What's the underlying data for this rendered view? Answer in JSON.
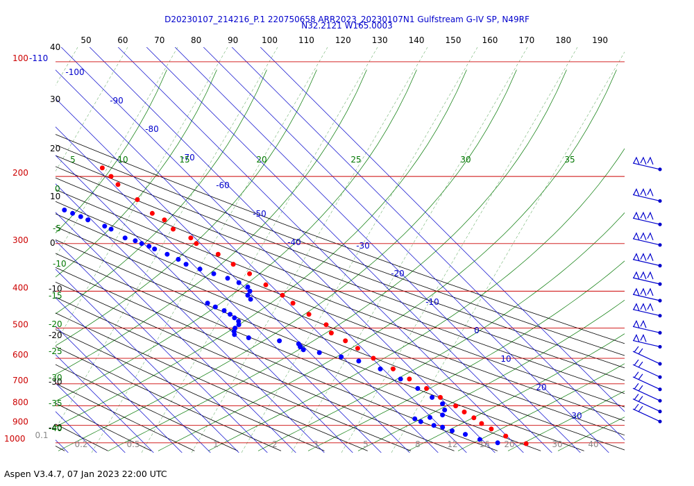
{
  "header": {
    "line1": "D20230107_214216_P.1 220750658 ARR2023_20230107N1 Gulfstream G-IV SP, N49RF",
    "line2": "N32.2121 W165.0003"
  },
  "footer": "Aspen V3.4.7, 07 Jan 2023  22:00 UTC",
  "colors": {
    "pressure": "#cc0000",
    "temperature": "#ff0000",
    "dewpoint": "#0000ff",
    "isotherm": "#0000cc",
    "mixing_ratio": "#007700",
    "dry_adiabat": "#000000",
    "moist_adiabat": "#007700",
    "wind": "#0000cc"
  },
  "chart_data": {
    "type": "skew-t",
    "pressure_levels": [
      "100",
      "200",
      "300",
      "400",
      "500",
      "600",
      "700",
      "800",
      "900",
      "1000"
    ],
    "top_label": "-110",
    "top_temperature_labels": [
      "50",
      "60",
      "70",
      "80",
      "90",
      "100",
      "110",
      "120",
      "130",
      "140",
      "150",
      "160",
      "170",
      "180",
      "190"
    ],
    "height_labels": [
      "40",
      "30",
      "20",
      "10",
      "0",
      "-10",
      "-20",
      "-30",
      "-40"
    ],
    "temperature_labels": [
      "-100",
      "-90",
      "-80",
      "-70",
      "-60",
      "-50",
      "-40",
      "-30",
      "-20",
      "-10",
      "0",
      "10",
      "20",
      "30"
    ],
    "left_labels": [
      "0",
      "-5",
      "-10",
      "-15",
      "-20",
      "-25",
      "-30",
      "-35",
      "-40"
    ],
    "mixing_ratio_top_labels": [
      "5",
      "10",
      "15",
      "20",
      "25",
      "30",
      "35"
    ],
    "mixing_ratio_bottom_labels": [
      "0.1",
      "0.2",
      "0.5",
      "1",
      "2",
      "3",
      "5",
      "8",
      "12",
      "16",
      "20",
      "30",
      "40"
    ],
    "temperature_profile": [
      [
        190,
        -38
      ],
      [
        200,
        -37.9
      ],
      [
        210,
        -38.3
      ],
      [
        230,
        -36.8
      ],
      [
        250,
        -36.4
      ],
      [
        260,
        -34.4
      ],
      [
        275,
        -34.6
      ],
      [
        290,
        -31.5
      ],
      [
        300,
        -31.5
      ],
      [
        320,
        -27.6
      ],
      [
        340,
        -25.8
      ],
      [
        360,
        -23.4
      ],
      [
        385,
        -21.6
      ],
      [
        410,
        -19.4
      ],
      [
        430,
        -18.5
      ],
      [
        460,
        -16.8
      ],
      [
        490,
        -14.4
      ],
      [
        515,
        -15.5
      ],
      [
        540,
        -13.3
      ],
      [
        565,
        -11.6
      ],
      [
        600,
        -9.6
      ],
      [
        640,
        -6.4
      ],
      [
        680,
        -4.2
      ],
      [
        720,
        -1.5
      ],
      [
        760,
        0.2
      ],
      [
        800,
        2.6
      ],
      [
        830,
        3.5
      ],
      [
        860,
        4.8
      ],
      [
        890,
        5.5
      ],
      [
        920,
        7.0
      ],
      [
        960,
        9.6
      ],
      [
        1005,
        14.1
      ]
    ],
    "dewpoint_profile": [
      [
        245,
        -66.1
      ],
      [
        250,
        -64.4
      ],
      [
        255,
        -62.7
      ],
      [
        260,
        -61.3
      ],
      [
        270,
        -57.6
      ],
      [
        275,
        -56.4
      ],
      [
        290,
        -54.6
      ],
      [
        295,
        -52.0
      ],
      [
        300,
        -50.7
      ],
      [
        305,
        -49.1
      ],
      [
        310,
        -48.1
      ],
      [
        320,
        -45.5
      ],
      [
        330,
        -43.4
      ],
      [
        340,
        -42.4
      ],
      [
        350,
        -39.2
      ],
      [
        360,
        -36.0
      ],
      [
        370,
        -32.7
      ],
      [
        380,
        -30.3
      ],
      [
        390,
        -28.7
      ],
      [
        400,
        -29.4
      ],
      [
        410,
        -31.6
      ],
      [
        420,
        -32.0
      ],
      [
        430,
        -48.5
      ],
      [
        440,
        -47.1
      ],
      [
        450,
        -45.3
      ],
      [
        460,
        -44.5
      ],
      [
        470,
        -44.2
      ],
      [
        480,
        -44.0
      ],
      [
        490,
        -45.1
      ],
      [
        500,
        -47.6
      ],
      [
        510,
        -49.1
      ],
      [
        520,
        -50.1
      ],
      [
        530,
        -46.2
      ],
      [
        540,
        -36.5
      ],
      [
        550,
        -30.8
      ],
      [
        560,
        -31.3
      ],
      [
        570,
        -31.2
      ],
      [
        580,
        -26.6
      ],
      [
        595,
        -20.4
      ],
      [
        610,
        -15.7
      ],
      [
        640,
        -10.9
      ],
      [
        680,
        -7.3
      ],
      [
        720,
        -4.6
      ],
      [
        760,
        -2.7
      ],
      [
        790,
        -1.3
      ],
      [
        820,
        -2.7
      ],
      [
        845,
        -5.2
      ],
      [
        858,
        -10.5
      ],
      [
        865,
        -16.3
      ],
      [
        880,
        -15.2
      ],
      [
        900,
        -11.9
      ],
      [
        910,
        -9.5
      ],
      [
        930,
        -7.4
      ],
      [
        950,
        -4.0
      ],
      [
        980,
        -0.7
      ],
      [
        1000,
        4.4
      ]
    ],
    "wind_pressures": [
      190,
      230,
      265,
      300,
      340,
      380,
      420,
      460,
      510,
      555,
      600,
      650,
      700,
      750,
      800,
      850
    ]
  }
}
